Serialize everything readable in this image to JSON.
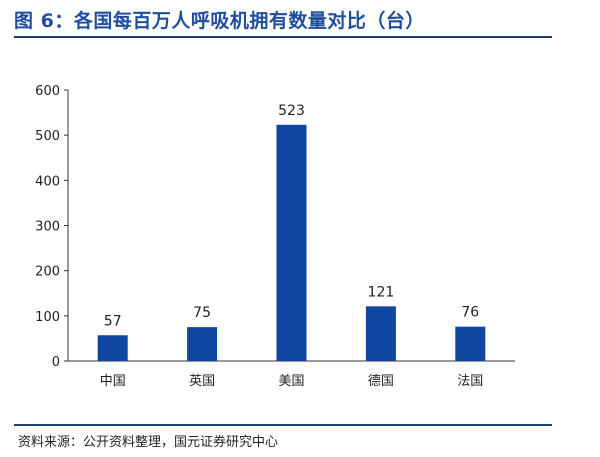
{
  "header": {
    "title": "图 6：各国每百万人呼吸机拥有数量对比（台）"
  },
  "footer": {
    "source": "资料来源：公开资料整理，国元证券研究中心"
  },
  "colors": {
    "bar": "#1045a0",
    "title": "#1f4e9c",
    "rule": "#1f3f7a"
  },
  "chart_data": {
    "type": "bar",
    "title": "各国每百万人呼吸机拥有数量对比（台）",
    "categories": [
      "中国",
      "英国",
      "美国",
      "德国",
      "法国"
    ],
    "values": [
      57,
      75,
      523,
      121,
      76
    ],
    "data_labels": [
      "57",
      "75",
      "523",
      "121",
      "76"
    ],
    "xlabel": "",
    "ylabel": "",
    "ylim": [
      0,
      600
    ],
    "yticks": [
      0,
      100,
      200,
      300,
      400,
      500,
      600
    ],
    "grid": false,
    "legend": "none"
  }
}
